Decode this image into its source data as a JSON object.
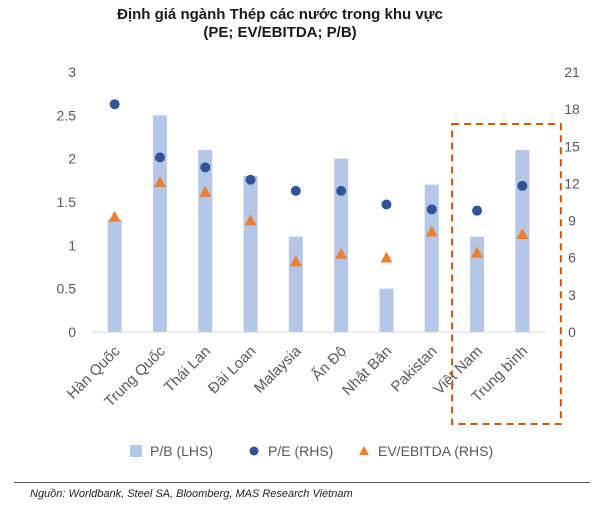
{
  "header": {
    "title_line1": "Định giá ngành Thép các nước trong khu vực",
    "title_line2": "(PE; EV/EBITDA; P/B)"
  },
  "source": "Nguồn: Worldbank, Steel SA, Bloomberg, MAS Research Vietnam",
  "chart_data": {
    "type": "bar",
    "categories": [
      "Hàn Quốc",
      "Trung Quốc",
      "Thái Lan",
      "Đài Loan",
      "Malaysia",
      "Ấn Độ",
      "Nhật Bản",
      "Pakistan",
      "Việt Nam",
      "Trung bình"
    ],
    "series": [
      {
        "name": "P/B (LHS)",
        "type": "bar",
        "axis": "left",
        "color": "#b4c7e7",
        "values": [
          1.3,
          2.5,
          2.1,
          1.8,
          1.1,
          2.0,
          0.5,
          1.7,
          1.1,
          2.1
        ]
      },
      {
        "name": "P/E (RHS)",
        "type": "scatter",
        "marker": "circle",
        "axis": "right",
        "color": "#2f5597",
        "values": [
          18.4,
          14.1,
          13.3,
          12.3,
          11.4,
          11.4,
          10.3,
          9.9,
          9.8,
          11.8
        ]
      },
      {
        "name": "EV/EBITDA (RHS)",
        "type": "scatter",
        "marker": "triangle",
        "axis": "right",
        "color": "#ed7d31",
        "values": [
          9.3,
          12.1,
          11.3,
          9.0,
          5.7,
          6.3,
          6.0,
          8.1,
          6.4,
          7.9
        ]
      }
    ],
    "y_left": {
      "ylim": [
        0,
        3
      ],
      "ticks": [
        "0",
        "0.5",
        "1",
        "1.5",
        "2",
        "2.5",
        "3"
      ]
    },
    "y_right": {
      "ylim": [
        0,
        21
      ],
      "ticks": [
        "0",
        "3",
        "6",
        "9",
        "12",
        "15",
        "18",
        "21"
      ]
    },
    "highlight": {
      "categories": [
        "Việt Nam",
        "Trung bình"
      ],
      "style": "dashed-box",
      "color": "#c55a11"
    },
    "legend_position": "bottom",
    "grid": false
  }
}
